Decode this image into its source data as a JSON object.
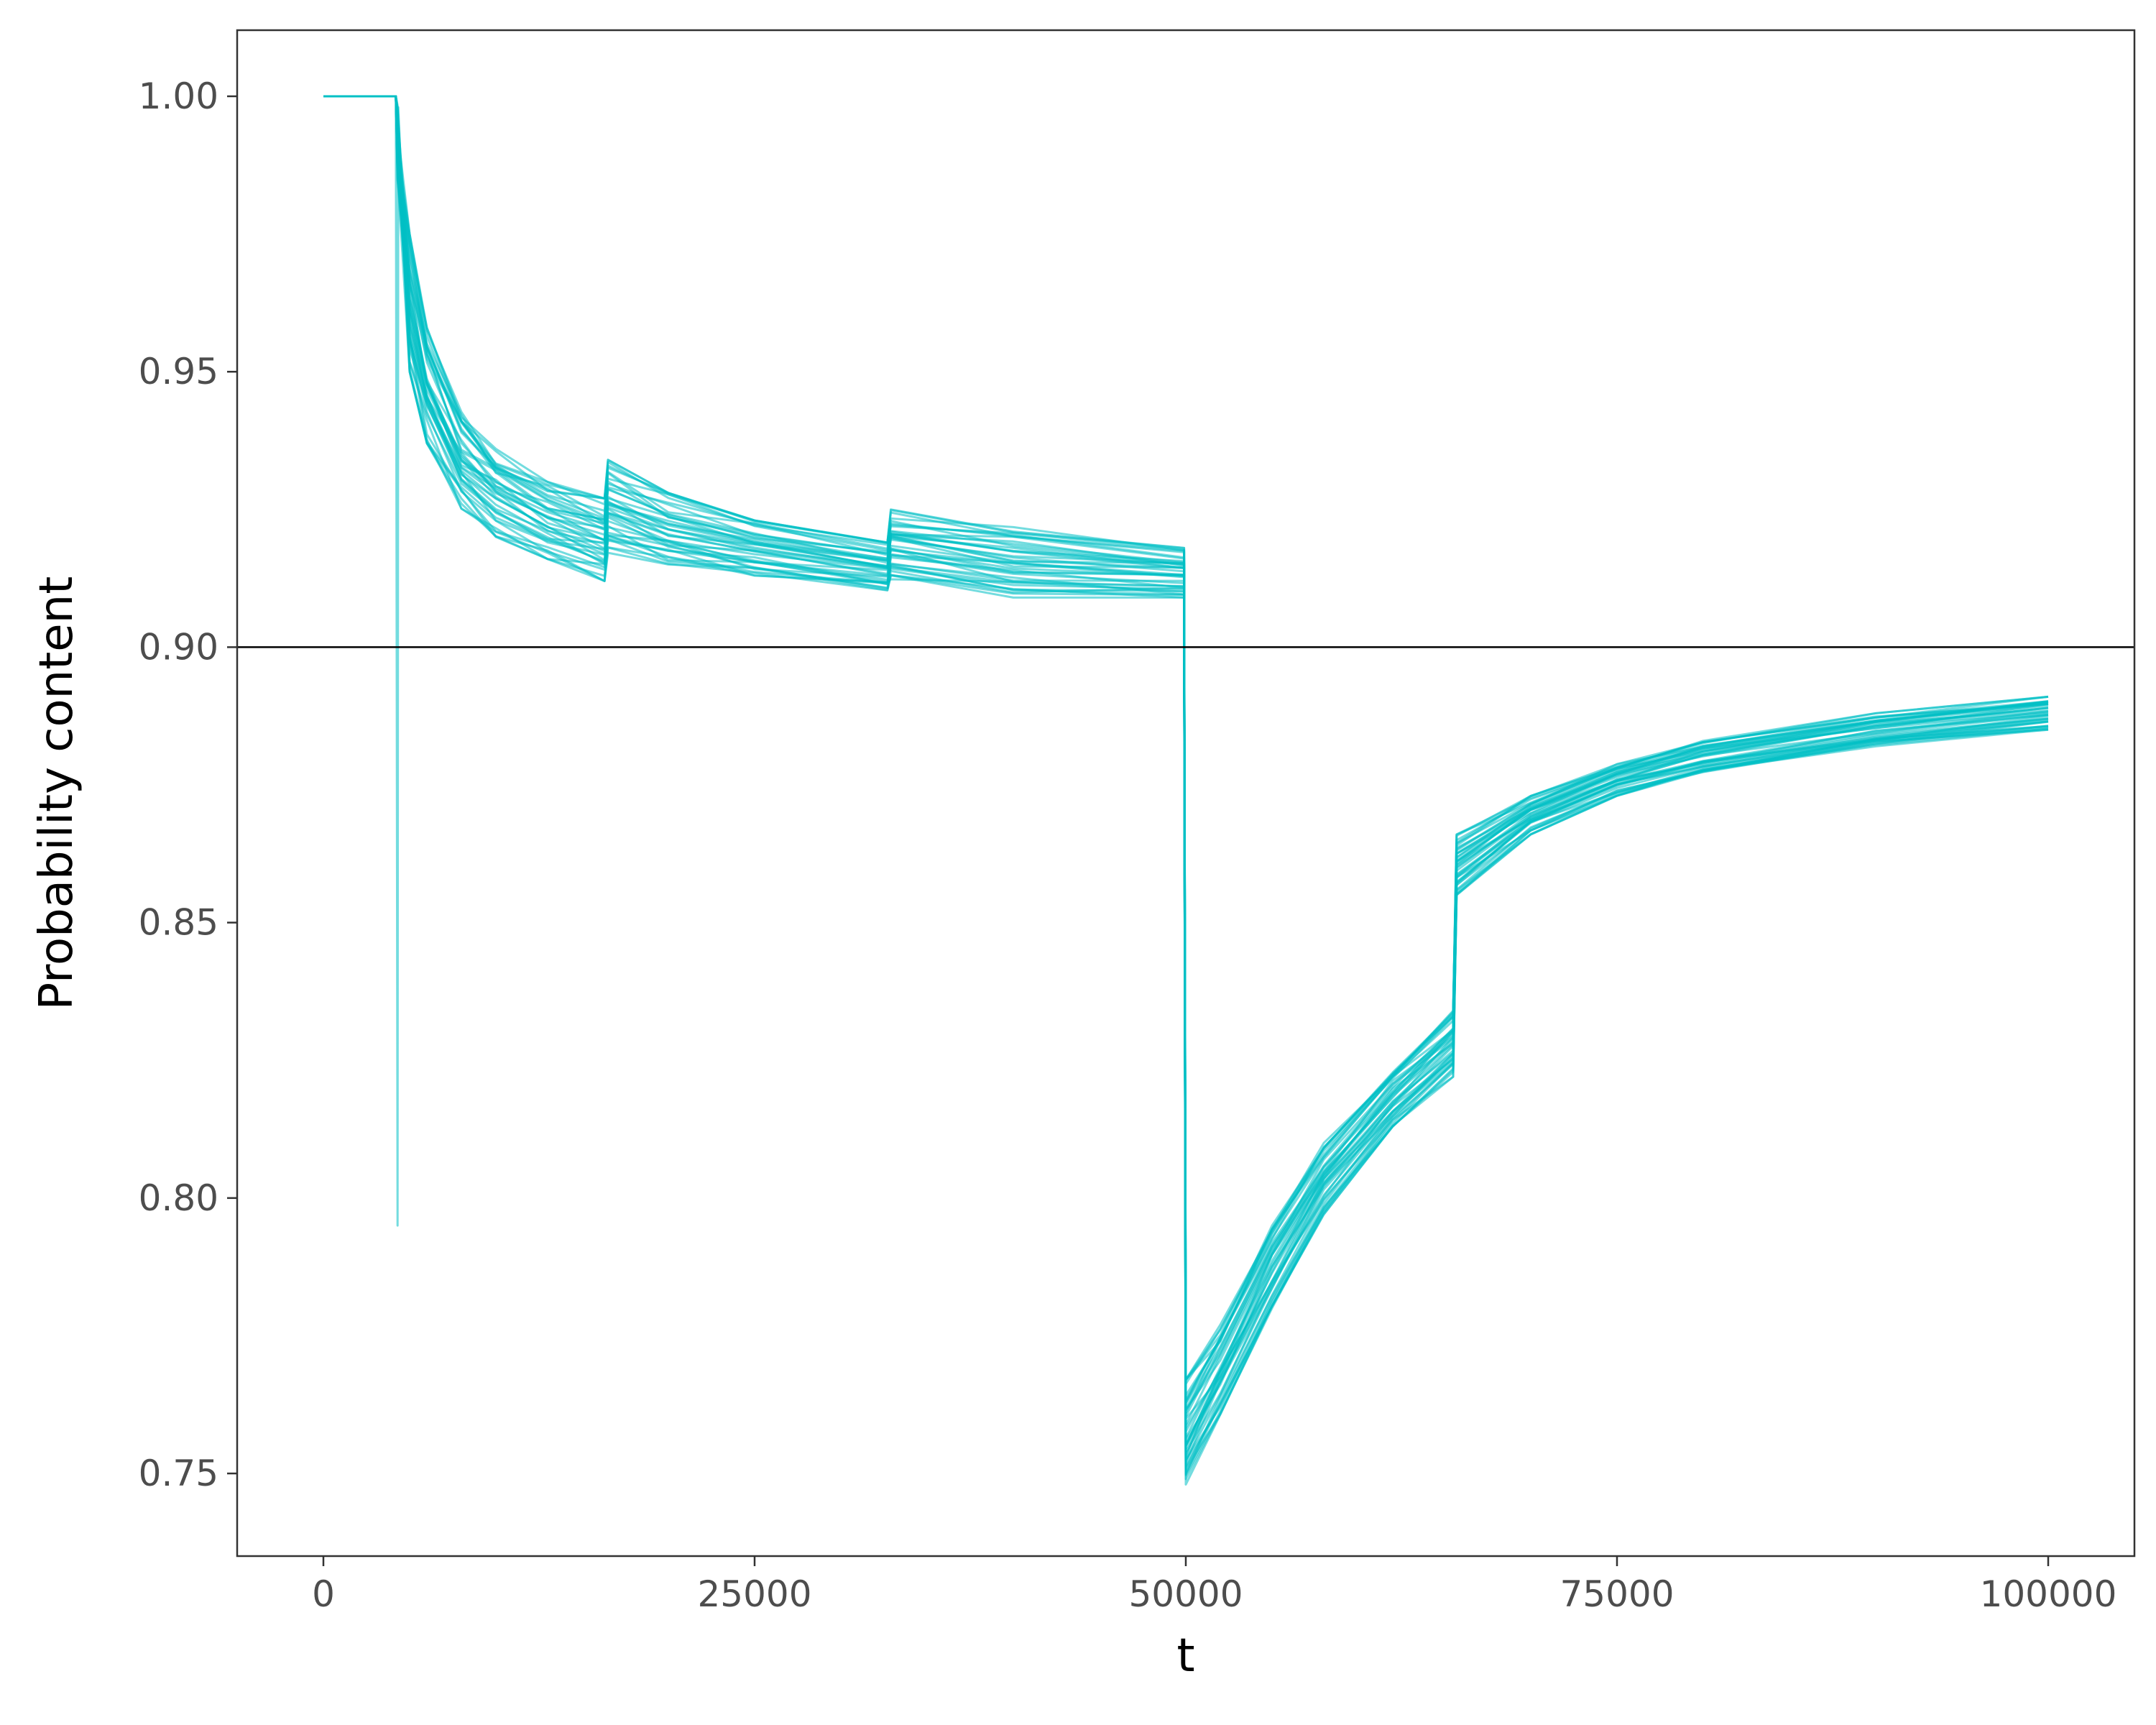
{
  "chart_data": {
    "type": "line",
    "title": "",
    "xlabel": "t",
    "ylabel": "Probability content",
    "xlim": [
      -5000,
      105000
    ],
    "ylim": [
      0.735,
      1.012
    ],
    "x_ticks": [
      0,
      25000,
      50000,
      75000,
      100000
    ],
    "x_tick_labels": [
      "0",
      "25000",
      "50000",
      "75000",
      "100000"
    ],
    "y_ticks": [
      0.75,
      0.8,
      0.85,
      0.9,
      0.95,
      1.0
    ],
    "y_tick_labels": [
      "0.75",
      "0.80",
      "0.85",
      "0.90",
      "0.95",
      "1.00"
    ],
    "grid": false,
    "legend": "none",
    "reference_line": {
      "y": 0.9,
      "color": "#000000"
    },
    "series_color": "#00BFC4",
    "series_count": 40,
    "series_band": [
      {
        "x": 0,
        "y": [
          1.0,
          1.0
        ]
      },
      {
        "x": 4200,
        "y": [
          1.0,
          1.0
        ]
      },
      {
        "x": 4300,
        "y": [
          0.79,
          0.999
        ]
      },
      {
        "x": 5000,
        "y": [
          0.95,
          0.975
        ]
      },
      {
        "x": 6000,
        "y": [
          0.937,
          0.958
        ]
      },
      {
        "x": 8000,
        "y": [
          0.925,
          0.943
        ]
      },
      {
        "x": 10000,
        "y": [
          0.92,
          0.936
        ]
      },
      {
        "x": 13000,
        "y": [
          0.916,
          0.93
        ]
      },
      {
        "x": 16300,
        "y": [
          0.912,
          0.927
        ]
      },
      {
        "x": 16500,
        "y": [
          0.917,
          0.934
        ]
      },
      {
        "x": 20000,
        "y": [
          0.915,
          0.928
        ]
      },
      {
        "x": 25000,
        "y": [
          0.913,
          0.923
        ]
      },
      {
        "x": 32700,
        "y": [
          0.91,
          0.919
        ]
      },
      {
        "x": 32900,
        "y": [
          0.912,
          0.925
        ]
      },
      {
        "x": 40000,
        "y": [
          0.909,
          0.922
        ]
      },
      {
        "x": 49900,
        "y": [
          0.909,
          0.918
        ]
      },
      {
        "x": 50000,
        "y": [
          0.748,
          0.767
        ]
      },
      {
        "x": 52000,
        "y": [
          0.76,
          0.777
        ]
      },
      {
        "x": 55000,
        "y": [
          0.78,
          0.795
        ]
      },
      {
        "x": 58000,
        "y": [
          0.797,
          0.81
        ]
      },
      {
        "x": 62000,
        "y": [
          0.813,
          0.823
        ]
      },
      {
        "x": 65500,
        "y": [
          0.822,
          0.834
        ]
      },
      {
        "x": 65700,
        "y": [
          0.855,
          0.866
        ]
      },
      {
        "x": 70000,
        "y": [
          0.866,
          0.873
        ]
      },
      {
        "x": 75000,
        "y": [
          0.873,
          0.879
        ]
      },
      {
        "x": 80000,
        "y": [
          0.877,
          0.883
        ]
      },
      {
        "x": 90000,
        "y": [
          0.882,
          0.888
        ]
      },
      {
        "x": 100000,
        "y": [
          0.885,
          0.891
        ]
      }
    ],
    "series_spike": {
      "x": 4300,
      "min": 0.795
    }
  }
}
